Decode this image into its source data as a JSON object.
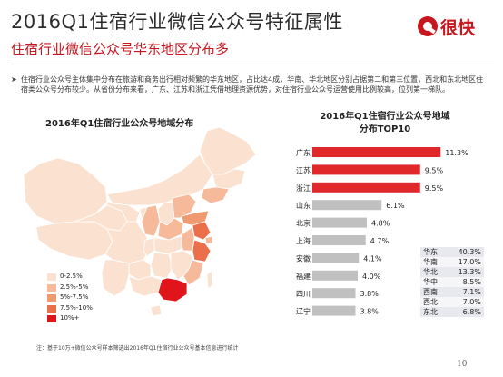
{
  "header": {
    "title": "2016Q1住宿行业微信公众号特征属性",
    "subtitle": "住宿行业微信公众号华东地区分布多",
    "logo_text": "很快"
  },
  "description": "住宿行业公众号主体集中分布在旅游和商务出行相对频繁的华东地区，占比达4成，华南、华北地区分别占据第二和第三位置，西北和东北地区住宿类公众号分布较少。从省份分布来看，广东、江苏和浙江凭借地理资源优势，对住宿行业公众号运营使用比例较高，位列第一梯队。",
  "map": {
    "title": "2016年Q1住宿行业公众号地域分布",
    "legend": [
      {
        "label": "0-2.5%",
        "color": "#fbe1d0"
      },
      {
        "label": "2.5%-5%",
        "color": "#f6b99a"
      },
      {
        "label": "5%-7.5%",
        "color": "#f09a72"
      },
      {
        "label": "7.5%-10%",
        "color": "#ea6f4a"
      },
      {
        "label": "10%+",
        "color": "#e0151c"
      }
    ]
  },
  "chart_data": {
    "type": "bar",
    "orientation": "horizontal",
    "title": "2016年Q1住宿行业公众号地域分布TOP10",
    "categories": [
      "广东",
      "江苏",
      "浙江",
      "山东",
      "北京",
      "上海",
      "安徽",
      "福建",
      "四川",
      "辽宁"
    ],
    "values": [
      11.3,
      9.5,
      9.5,
      6.1,
      4.8,
      4.7,
      4.1,
      4.0,
      3.8,
      3.8
    ],
    "value_labels": [
      "11.3%",
      "9.5%",
      "9.5%",
      "6.1%",
      "4.8%",
      "4.7%",
      "4.1%",
      "4.0%",
      "3.8%",
      "3.8%"
    ],
    "colors": {
      "highlight": "#e0282a",
      "normal": "#c0c0c0"
    },
    "highlight_count": 3,
    "xlim": [
      0,
      12
    ]
  },
  "region_table": [
    {
      "region": "华东",
      "value": "40.3%"
    },
    {
      "region": "华南",
      "value": "17.0%"
    },
    {
      "region": "华北",
      "value": "13.3%"
    },
    {
      "region": "华中",
      "value": "8.5%"
    },
    {
      "region": "西南",
      "value": "7.1%"
    },
    {
      "region": "西北",
      "value": "7.0%"
    },
    {
      "region": "东北",
      "value": "6.8%"
    }
  ],
  "footnote": "注：基于10万+微信公众号样本筛选出2016年Q1住宿行业公众号基本信息进行统计",
  "page_number": "10"
}
